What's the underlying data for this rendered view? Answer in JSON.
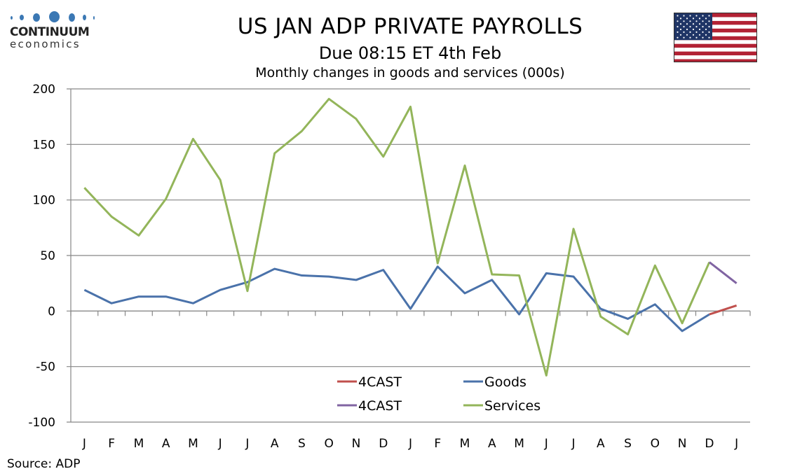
{
  "logo": {
    "name": "CONTINUUM",
    "sub": "economics"
  },
  "header": {
    "title": "US JAN ADP PRIVATE PAYROLLS",
    "subtitle": "Due 08:15 ET 4th Feb",
    "description": "Monthly changes in goods and services (000s)"
  },
  "flag": {
    "icon": "us-flag-icon"
  },
  "footer": {
    "source": "Source: ADP"
  },
  "colors": {
    "goods": "#4a72aa",
    "services": "#93b55a",
    "forecast_goods": "#c0504d",
    "forecast_services": "#8064a2",
    "grid": "#868686"
  },
  "chart_data": {
    "type": "line",
    "title": "US JAN ADP PRIVATE PAYROLLS",
    "subtitle": "Monthly changes in goods and services (000s)",
    "xlabel": "",
    "ylabel": "",
    "ylim": [
      -100,
      200
    ],
    "yticks": [
      200,
      150,
      100,
      50,
      0,
      -50,
      -100
    ],
    "grid": true,
    "legend_position": "bottom-center",
    "categories": [
      "J",
      "F",
      "M",
      "A",
      "M",
      "J",
      "J",
      "A",
      "S",
      "O",
      "N",
      "D",
      "J",
      "F",
      "M",
      "A",
      "M",
      "J",
      "J",
      "A",
      "S",
      "O",
      "N",
      "D",
      "J"
    ],
    "series": [
      {
        "name": "Goods",
        "color": "#4a72aa",
        "values": [
          19,
          7,
          13,
          13,
          7,
          19,
          26,
          38,
          32,
          31,
          28,
          37,
          2,
          40,
          16,
          28,
          -3,
          34,
          31,
          2,
          -7,
          6,
          -18,
          -3,
          null
        ]
      },
      {
        "name": "Services",
        "color": "#93b55a",
        "values": [
          111,
          85,
          68,
          101,
          155,
          118,
          18,
          142,
          162,
          191,
          173,
          139,
          184,
          43,
          131,
          33,
          32,
          -58,
          74,
          -5,
          -21,
          41,
          -11,
          44,
          null
        ]
      },
      {
        "name": "4CAST",
        "color": "#c0504d",
        "note": "goods forecast",
        "values": [
          null,
          null,
          null,
          null,
          null,
          null,
          null,
          null,
          null,
          null,
          null,
          null,
          null,
          null,
          null,
          null,
          null,
          null,
          null,
          null,
          null,
          null,
          null,
          -3,
          5
        ]
      },
      {
        "name": "4CAST",
        "color": "#8064a2",
        "note": "services forecast",
        "values": [
          null,
          null,
          null,
          null,
          null,
          null,
          null,
          null,
          null,
          null,
          null,
          null,
          null,
          null,
          null,
          null,
          null,
          null,
          null,
          null,
          null,
          null,
          null,
          44,
          25
        ]
      }
    ],
    "legend": [
      {
        "label": "4CAST",
        "color": "#c0504d"
      },
      {
        "label": "Goods",
        "color": "#4a72aa"
      },
      {
        "label": "4CAST",
        "color": "#8064a2"
      },
      {
        "label": "Services",
        "color": "#93b55a"
      }
    ]
  }
}
